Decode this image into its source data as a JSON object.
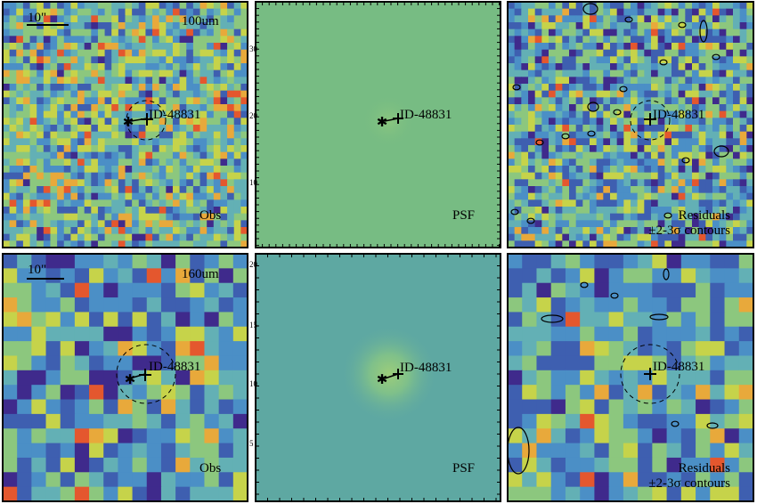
{
  "figure": {
    "rows": [
      {
        "band": "100um",
        "scale_bar": "10\"",
        "source_id": "ID-48831"
      },
      {
        "band": "160um",
        "scale_bar": "10\"",
        "source_id": "ID-48831"
      }
    ],
    "columns": [
      {
        "label": "Obs",
        "kind": "observed"
      },
      {
        "label": "PSF",
        "kind": "psf"
      },
      {
        "label": "Residuals",
        "caption": "±2-3σ contours",
        "kind": "residual"
      }
    ],
    "tick_labels": {
      "row1": [
        "30",
        "20",
        "10"
      ],
      "row2": [
        "20",
        "15",
        "10",
        "5"
      ]
    },
    "colormap": [
      "#3f2a8c",
      "#3e5fb0",
      "#4b8fc6",
      "#63b0b5",
      "#8cc77e",
      "#c6d34a",
      "#e8a93b",
      "#e4572e"
    ],
    "psf_colors": {
      "row1_bg": "#77bc83",
      "row2_bg": "#5ea8a2",
      "row2_peak": "#9ccd7a"
    }
  }
}
